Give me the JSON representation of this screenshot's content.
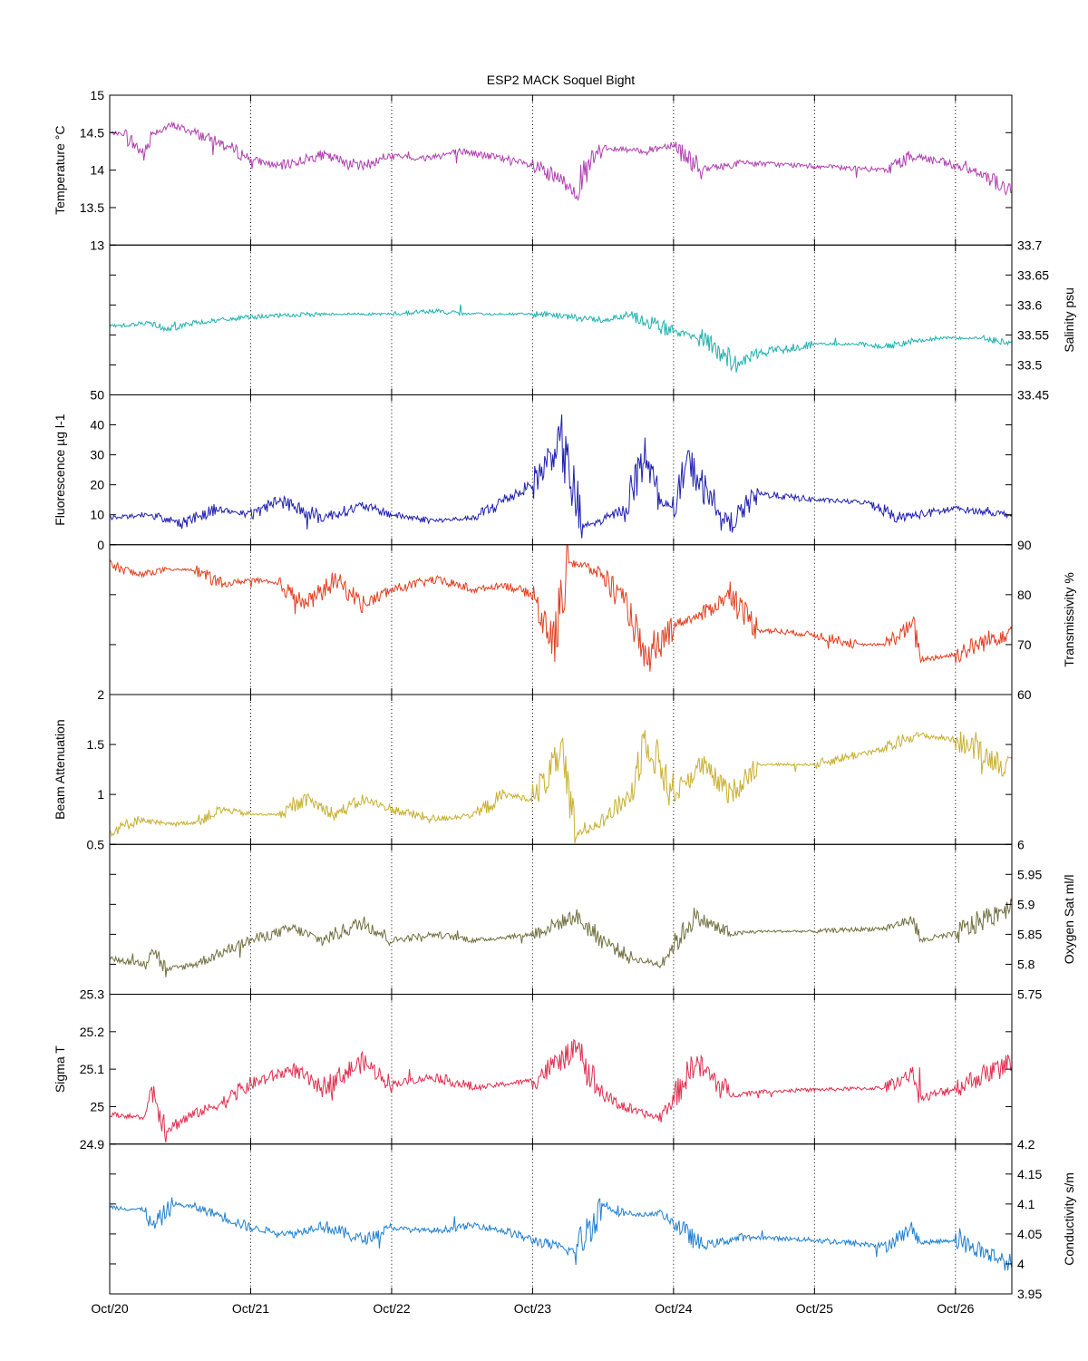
{
  "chart_data": {
    "type": "line",
    "title": "ESP2 MACK  Soquel Bight",
    "xlim": [
      "Oct/20",
      "Oct/26 9:36"
    ],
    "x_ticks": [
      "Oct/20",
      "Oct/21",
      "Oct/22",
      "Oct/23",
      "Oct/24",
      "Oct/25",
      "Oct/26"
    ],
    "grid": "vertical dotted at x ticks",
    "panels": [
      {
        "id": "temperature",
        "ylabel": "Temperature °C",
        "axis_side": "left",
        "ylim": [
          13,
          15
        ],
        "ticks": [
          13,
          13.5,
          14,
          14.5,
          15
        ],
        "tick_labels": [
          "13",
          "13.5",
          "14",
          "14.5",
          "15"
        ],
        "color": "#B040B0",
        "series": {
          "name": "",
          "x": [
            0,
            0.1,
            0.25,
            0.3,
            0.45,
            0.6,
            0.8,
            1.0,
            1.2,
            1.5,
            1.8,
            2.0,
            2.2,
            2.5,
            2.8,
            3.0,
            3.3,
            3.5,
            3.8,
            4.0,
            4.2,
            4.5,
            5.0,
            5.5,
            5.7,
            6.0,
            6.2,
            6.4
          ],
          "y": [
            14.5,
            14.48,
            14.2,
            14.5,
            14.6,
            14.5,
            14.35,
            14.15,
            14.05,
            14.2,
            14.05,
            14.2,
            14.15,
            14.25,
            14.15,
            14.05,
            13.75,
            14.3,
            14.25,
            14.35,
            14.0,
            14.1,
            14.05,
            14.0,
            14.2,
            14.05,
            13.95,
            13.7
          ]
        }
      },
      {
        "id": "salinity",
        "ylabel": "Salinity psu",
        "axis_side": "right",
        "ylim": [
          33.45,
          33.7
        ],
        "ticks": [
          33.45,
          33.5,
          33.55,
          33.6,
          33.65,
          33.7
        ],
        "tick_labels": [
          "33.45",
          "33.5",
          "33.55",
          "33.6",
          "33.65",
          "33.7"
        ],
        "color": "#20B0B0",
        "series": {
          "name": "",
          "x": [
            0,
            0.3,
            0.4,
            0.6,
            0.8,
            1.0,
            1.5,
            2.0,
            2.3,
            2.5,
            3.0,
            3.5,
            3.7,
            4.0,
            4.2,
            4.45,
            4.6,
            5.0,
            5.3,
            5.5,
            5.7,
            5.9,
            6.2,
            6.4
          ],
          "y": [
            33.565,
            33.57,
            33.56,
            33.57,
            33.575,
            33.58,
            33.585,
            33.585,
            33.59,
            33.585,
            33.585,
            33.575,
            33.585,
            33.555,
            33.545,
            33.5,
            33.52,
            33.535,
            33.535,
            33.53,
            33.54,
            33.545,
            33.545,
            33.535
          ]
        }
      },
      {
        "id": "fluorescence",
        "ylabel": "Fluorescence µg l-1",
        "axis_side": "left",
        "ylim": [
          0,
          50
        ],
        "ticks": [
          0,
          10,
          20,
          30,
          40,
          50
        ],
        "tick_labels": [
          "0",
          "10",
          "20",
          "30",
          "40",
          "50"
        ],
        "color": "#2020B0",
        "series": {
          "name": "",
          "x": [
            0,
            0.3,
            0.5,
            0.75,
            1.0,
            1.2,
            1.5,
            1.8,
            2.0,
            2.3,
            2.6,
            2.8,
            3.0,
            3.2,
            3.35,
            3.5,
            3.65,
            3.8,
            3.9,
            4.0,
            4.1,
            4.3,
            4.4,
            4.6,
            5.0,
            5.4,
            5.6,
            6.0,
            6.4
          ],
          "y": [
            9,
            10,
            7,
            12,
            10,
            15,
            9,
            13,
            10,
            8,
            9,
            15,
            20,
            35,
            6,
            8,
            12,
            30,
            15,
            12,
            28,
            12,
            7,
            17,
            15,
            14,
            9,
            12,
            10
          ]
        }
      },
      {
        "id": "transmissivity",
        "ylabel": "Transmissivity %",
        "axis_side": "right",
        "ylim": [
          60,
          90
        ],
        "ticks": [
          60,
          70,
          80,
          90
        ],
        "tick_labels": [
          "60",
          "70",
          "80",
          "90"
        ],
        "color": "#E04020",
        "series": {
          "name": "",
          "x": [
            0,
            0.2,
            0.4,
            0.6,
            0.8,
            1.0,
            1.2,
            1.4,
            1.6,
            1.8,
            2.0,
            2.3,
            2.6,
            2.8,
            3.0,
            3.15,
            3.25,
            3.5,
            3.7,
            3.8,
            4.0,
            4.2,
            4.4,
            4.6,
            5.0,
            5.3,
            5.5,
            5.7,
            5.75,
            6.0,
            6.4
          ],
          "y": [
            86,
            84,
            85,
            85,
            82,
            83,
            82,
            78,
            83,
            78,
            81,
            83,
            81,
            82,
            80,
            70,
            87,
            84,
            76,
            66,
            74,
            76,
            80,
            73,
            72,
            70,
            70,
            74,
            67,
            68,
            73
          ]
        }
      },
      {
        "id": "beam_attenuation",
        "ylabel": "Beam Attenuation",
        "axis_side": "left",
        "ylim": [
          0.5,
          2
        ],
        "ticks": [
          0.5,
          1,
          1.5,
          2
        ],
        "tick_labels": [
          "0.5",
          "1",
          "1.5",
          "2"
        ],
        "color": "#C8B030",
        "series": {
          "name": "",
          "x": [
            0,
            0.2,
            0.4,
            0.6,
            0.8,
            1.0,
            1.2,
            1.4,
            1.6,
            1.8,
            2.0,
            2.3,
            2.6,
            2.8,
            3.0,
            3.2,
            3.3,
            3.5,
            3.7,
            3.8,
            4.0,
            4.2,
            4.4,
            4.6,
            5.0,
            5.3,
            5.5,
            5.7,
            6.0,
            6.4
          ],
          "y": [
            0.62,
            0.75,
            0.7,
            0.72,
            0.85,
            0.8,
            0.8,
            0.95,
            0.8,
            0.95,
            0.85,
            0.75,
            0.8,
            1.0,
            0.95,
            1.4,
            0.6,
            0.75,
            1.0,
            1.6,
            1.0,
            1.3,
            1.0,
            1.3,
            1.3,
            1.4,
            1.45,
            1.6,
            1.55,
            1.25
          ]
        }
      },
      {
        "id": "oxygen",
        "ylabel": "Oxygen Sat ml/l",
        "axis_side": "right",
        "ylim": [
          5.75,
          6
        ],
        "ticks": [
          5.75,
          5.8,
          5.85,
          5.9,
          5.95,
          6
        ],
        "tick_labels": [
          "5.75",
          "5.8",
          "5.85",
          "5.9",
          "5.95",
          "6"
        ],
        "color": "#707040",
        "series": {
          "name": "",
          "x": [
            0,
            0.25,
            0.3,
            0.4,
            0.6,
            0.8,
            1.0,
            1.3,
            1.5,
            1.8,
            2.0,
            2.3,
            2.6,
            2.8,
            3.0,
            3.3,
            3.5,
            3.7,
            3.9,
            4.0,
            4.15,
            4.4,
            4.6,
            5.0,
            5.5,
            5.7,
            5.75,
            6.0,
            6.4
          ],
          "y": [
            5.81,
            5.8,
            5.83,
            5.79,
            5.8,
            5.82,
            5.84,
            5.86,
            5.84,
            5.87,
            5.84,
            5.85,
            5.84,
            5.845,
            5.85,
            5.88,
            5.84,
            5.81,
            5.8,
            5.83,
            5.88,
            5.85,
            5.855,
            5.855,
            5.86,
            5.875,
            5.84,
            5.85,
            5.9
          ]
        }
      },
      {
        "id": "sigma_t",
        "ylabel": "Sigma T",
        "axis_side": "left",
        "ylim": [
          24.9,
          25.3
        ],
        "ticks": [
          24.9,
          25,
          25.1,
          25.2,
          25.3
        ],
        "tick_labels": [
          "24.9",
          "25",
          "25.1",
          "25.2",
          "25.3"
        ],
        "color": "#E03050",
        "series": {
          "name": "",
          "x": [
            0,
            0.25,
            0.3,
            0.4,
            0.6,
            0.8,
            1.0,
            1.3,
            1.5,
            1.8,
            2.0,
            2.3,
            2.6,
            2.8,
            3.0,
            3.3,
            3.5,
            3.7,
            3.9,
            4.0,
            4.15,
            4.4,
            4.6,
            5.0,
            5.5,
            5.7,
            5.75,
            6.0,
            6.4
          ],
          "y": [
            24.98,
            24.97,
            25.05,
            24.94,
            24.98,
            25.01,
            25.06,
            25.1,
            25.05,
            25.12,
            25.06,
            25.08,
            25.05,
            25.06,
            25.07,
            25.15,
            25.03,
            24.99,
            24.97,
            25.02,
            25.12,
            25.03,
            25.04,
            25.045,
            25.05,
            25.09,
            25.02,
            25.05,
            25.12
          ]
        }
      },
      {
        "id": "conductivity",
        "ylabel": "Conductivity s/m",
        "axis_side": "right",
        "ylim": [
          3.95,
          4.2
        ],
        "ticks": [
          3.95,
          4,
          4.05,
          4.1,
          4.15,
          4.2
        ],
        "tick_labels": [
          "3.95",
          "4",
          "4.05",
          "4.1",
          "4.15",
          "4.2"
        ],
        "color": "#2080D0",
        "series": {
          "name": "",
          "x": [
            0,
            0.25,
            0.3,
            0.45,
            0.6,
            0.8,
            1.0,
            1.3,
            1.5,
            1.8,
            2.0,
            2.3,
            2.6,
            2.8,
            3.0,
            3.3,
            3.5,
            3.7,
            3.9,
            4.0,
            4.2,
            4.5,
            5.0,
            5.5,
            5.7,
            5.75,
            6.0,
            6.4
          ],
          "y": [
            4.095,
            4.09,
            4.06,
            4.1,
            4.095,
            4.08,
            4.06,
            4.05,
            4.065,
            4.04,
            4.06,
            4.055,
            4.065,
            4.055,
            4.04,
            4.02,
            4.1,
            4.08,
            4.085,
            4.07,
            4.03,
            4.045,
            4.04,
            4.03,
            4.06,
            4.035,
            4.04,
            4.0
          ]
        }
      }
    ]
  }
}
